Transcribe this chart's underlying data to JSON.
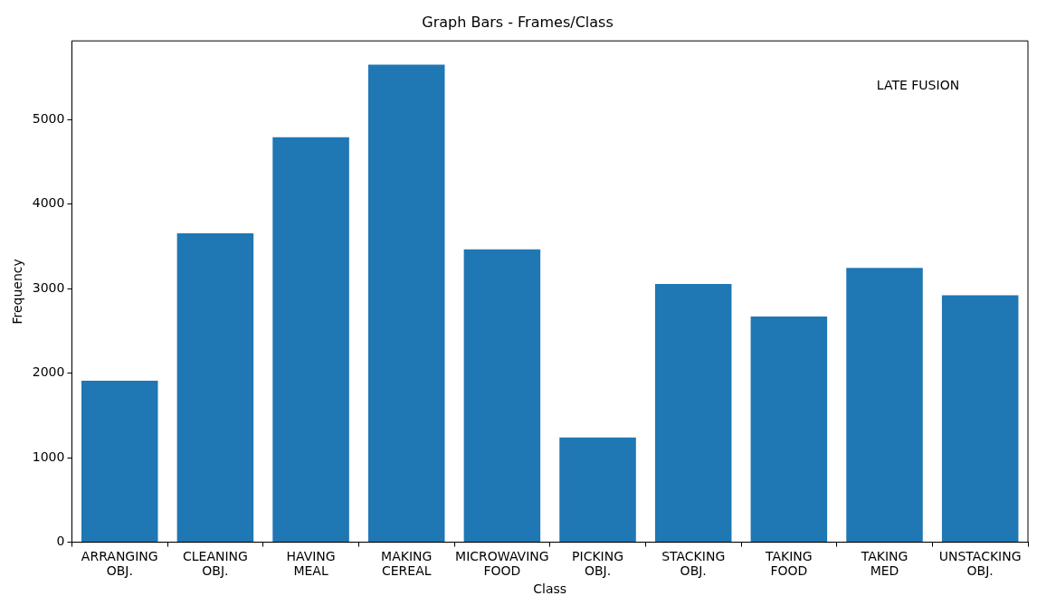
{
  "chart_data": {
    "type": "bar",
    "title": "Graph Bars - Frames/Class",
    "xlabel": "Class",
    "ylabel": "Frequency",
    "categories": [
      "ARRANGING\nOBJ.",
      "CLEANING\nOBJ.",
      "HAVING\nMEAL",
      "MAKING\nCEREAL",
      "MICROWAVING\nFOOD",
      "PICKING\nOBJ.",
      "STACKING\nOBJ.",
      "TAKING\nFOOD",
      "TAKING\nMED",
      "UNSTACKING\nOBJ."
    ],
    "values": [
      1910,
      3655,
      4790,
      5650,
      3465,
      1240,
      3055,
      2670,
      3245,
      2920
    ],
    "color": "#1f77b4",
    "ylim": [
      0,
      5930
    ],
    "yticks": [
      0,
      1000,
      2000,
      3000,
      4000,
      5000
    ],
    "grid": false,
    "legend": false,
    "annotations": [
      "LATE FUSION"
    ]
  }
}
